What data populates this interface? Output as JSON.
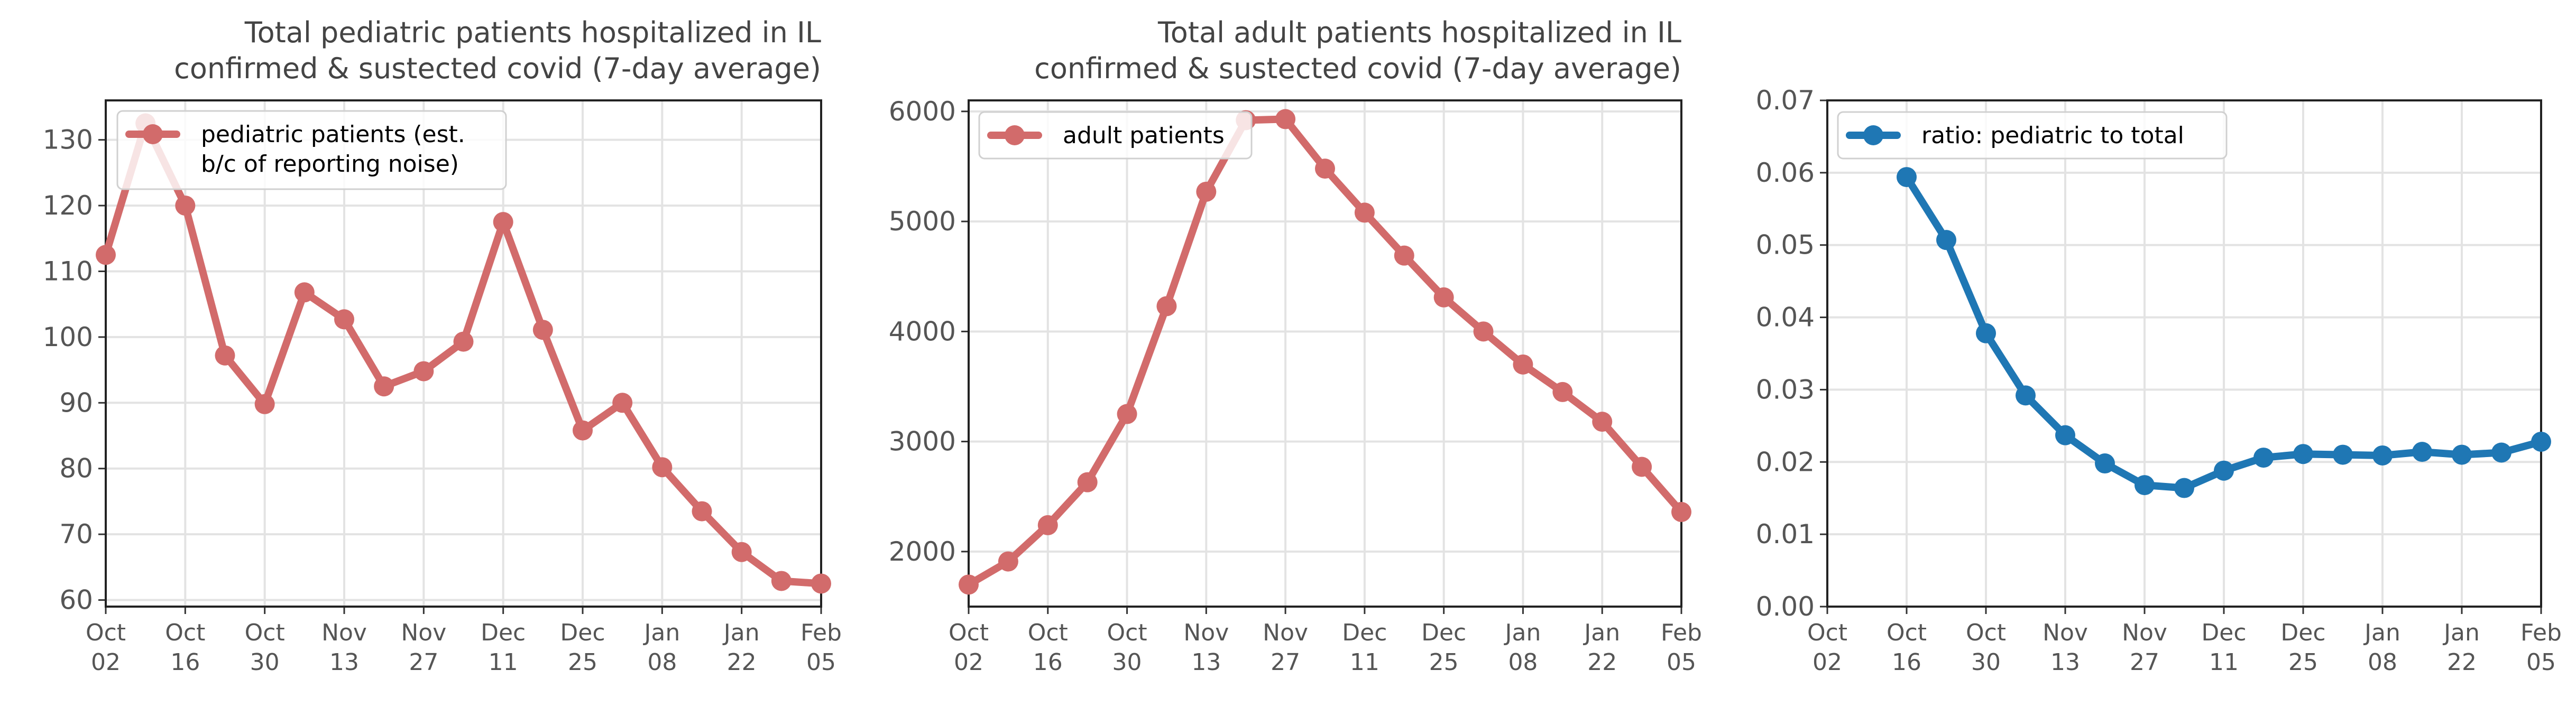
{
  "chart_data": [
    {
      "type": "line",
      "title": [
        "Total pediatric patients hospitalized in IL",
        "confirmed & sustected covid (7-day average)"
      ],
      "x": [
        "2022-10-02",
        "2022-10-09",
        "2022-10-16",
        "2022-10-23",
        "2022-10-30",
        "2022-11-06",
        "2022-11-13",
        "2022-11-20",
        "2022-11-27",
        "2022-12-04",
        "2022-12-11",
        "2022-12-18",
        "2022-12-25",
        "2023-01-01",
        "2023-01-08",
        "2023-01-15",
        "2023-01-22",
        "2023-01-29",
        "2023-02-05"
      ],
      "series": [
        {
          "name": "pediatric patients (est. b/c of reporting noise)",
          "legend_lines": [
            "pediatric patients (est.",
            "b/c of reporting noise)"
          ],
          "color": "#d26b6b",
          "values": [
            112.5,
            132.5,
            120,
            97.2,
            89.8,
            106.8,
            102.7,
            92.5,
            94.8,
            99.3,
            117.5,
            101.1,
            85.8,
            90,
            80.2,
            73.5,
            67.3,
            62.9,
            62.5
          ]
        }
      ],
      "ylim": [
        59,
        136
      ],
      "yticks": [
        60,
        70,
        80,
        90,
        100,
        110,
        120,
        130
      ],
      "xticks": [
        [
          "Oct",
          "02"
        ],
        [
          "Oct",
          "16"
        ],
        [
          "Oct",
          "30"
        ],
        [
          "Nov",
          "13"
        ],
        [
          "Nov",
          "27"
        ],
        [
          "Dec",
          "11"
        ],
        [
          "Dec",
          "25"
        ],
        [
          "Jan",
          "08"
        ],
        [
          "Jan",
          "22"
        ],
        [
          "Feb",
          "05"
        ]
      ],
      "grid": true,
      "legend": "upper-left"
    },
    {
      "type": "line",
      "title": [
        "Total adult patients hospitalized in IL",
        "confirmed & sustected covid (7-day average)"
      ],
      "x": [
        "2022-10-02",
        "2022-10-09",
        "2022-10-16",
        "2022-10-23",
        "2022-10-30",
        "2022-11-06",
        "2022-11-13",
        "2022-11-20",
        "2022-11-27",
        "2022-12-04",
        "2022-12-11",
        "2022-12-18",
        "2022-12-25",
        "2023-01-01",
        "2023-01-08",
        "2023-01-15",
        "2023-01-22",
        "2023-01-29",
        "2023-02-05"
      ],
      "series": [
        {
          "name": "adult patients",
          "legend_lines": [
            "adult patients"
          ],
          "color": "#d26b6b",
          "values": [
            1700,
            1910,
            2240,
            2630,
            3250,
            4230,
            5270,
            5920,
            5930,
            5480,
            5080,
            4690,
            4310,
            4000,
            3700,
            3450,
            3180,
            2770,
            2360
          ]
        }
      ],
      "ylim": [
        1500,
        6100
      ],
      "yticks": [
        2000,
        3000,
        4000,
        5000,
        6000
      ],
      "xticks": [
        [
          "Oct",
          "02"
        ],
        [
          "Oct",
          "16"
        ],
        [
          "Oct",
          "30"
        ],
        [
          "Nov",
          "13"
        ],
        [
          "Nov",
          "27"
        ],
        [
          "Dec",
          "11"
        ],
        [
          "Dec",
          "25"
        ],
        [
          "Jan",
          "08"
        ],
        [
          "Jan",
          "22"
        ],
        [
          "Feb",
          "05"
        ]
      ],
      "grid": true,
      "legend": "upper-left"
    },
    {
      "type": "line",
      "title": [],
      "x": [
        "2022-10-16",
        "2022-10-23",
        "2022-10-30",
        "2022-11-06",
        "2022-11-13",
        "2022-11-20",
        "2022-11-27",
        "2022-12-04",
        "2022-12-11",
        "2022-12-18",
        "2022-12-25",
        "2023-01-01",
        "2023-01-08",
        "2023-01-15",
        "2023-01-22",
        "2023-01-29",
        "2023-02-05"
      ],
      "series": [
        {
          "name": "ratio: pediatric to total",
          "legend_lines": [
            "ratio: pediatric to total"
          ],
          "color": "#1f77b4",
          "values": [
            0.0594,
            0.0507,
            0.0378,
            0.0292,
            0.0237,
            0.0198,
            0.0168,
            0.0164,
            0.0188,
            0.0206,
            0.0211,
            0.021,
            0.0209,
            0.0214,
            0.021,
            0.0213,
            0.0228
          ]
        }
      ],
      "ylim": [
        0,
        0.07
      ],
      "yticks": [
        "0.00",
        "0.01",
        "0.02",
        "0.03",
        "0.04",
        "0.05",
        "0.06",
        "0.07"
      ],
      "xticks": [
        [
          "Oct",
          "02"
        ],
        [
          "Oct",
          "16"
        ],
        [
          "Oct",
          "30"
        ],
        [
          "Nov",
          "13"
        ],
        [
          "Nov",
          "27"
        ],
        [
          "Dec",
          "11"
        ],
        [
          "Dec",
          "25"
        ],
        [
          "Jan",
          "08"
        ],
        [
          "Jan",
          "22"
        ],
        [
          "Feb",
          "05"
        ]
      ],
      "grid": true,
      "legend": "upper-left"
    }
  ]
}
